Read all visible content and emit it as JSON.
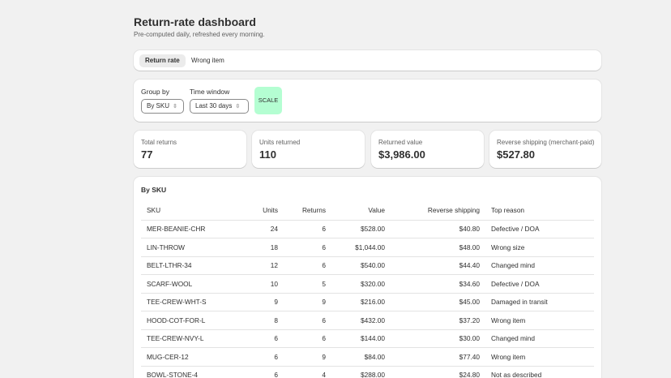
{
  "header": {
    "title": "Return-rate dashboard",
    "subtitle": "Pre-computed daily, refreshed every morning."
  },
  "tabs": [
    {
      "label": "Return rate",
      "active": true
    },
    {
      "label": "Wrong item",
      "active": false
    }
  ],
  "filters": {
    "group_by_label": "Group by",
    "group_by_value": "By SKU",
    "time_window_label": "Time window",
    "time_window_value": "Last 30 days",
    "scale_label": "SCALE"
  },
  "stats": [
    {
      "label": "Total returns",
      "value": "77"
    },
    {
      "label": "Units returned",
      "value": "110"
    },
    {
      "label": "Returned value",
      "value": "$3,986.00"
    },
    {
      "label": "Reverse shipping (merchant-paid)",
      "value": "$527.80"
    }
  ],
  "table": {
    "title": "By SKU",
    "columns": [
      "SKU",
      "Units",
      "Returns",
      "Value",
      "Reverse shipping",
      "Top reason"
    ],
    "rows": [
      [
        "MER-BEANIE-CHR",
        "24",
        "6",
        "$528.00",
        "$40.80",
        "Defective / DOA"
      ],
      [
        "LIN-THROW",
        "18",
        "6",
        "$1,044.00",
        "$48.00",
        "Wrong size"
      ],
      [
        "BELT-LTHR-34",
        "12",
        "6",
        "$540.00",
        "$44.40",
        "Changed mind"
      ],
      [
        "SCARF-WOOL",
        "10",
        "5",
        "$320.00",
        "$34.60",
        "Defective / DOA"
      ],
      [
        "TEE-CREW-WHT-S",
        "9",
        "9",
        "$216.00",
        "$45.00",
        "Damaged in transit"
      ],
      [
        "HOOD-COT-FOR-L",
        "8",
        "6",
        "$432.00",
        "$37.20",
        "Wrong item"
      ],
      [
        "TEE-CREW-NVY-L",
        "6",
        "6",
        "$144.00",
        "$30.00",
        "Changed mind"
      ],
      [
        "MUG-CER-12",
        "6",
        "9",
        "$84.00",
        "$77.40",
        "Wrong item"
      ],
      [
        "BOWL-STONE-4",
        "6",
        "4",
        "$288.00",
        "$24.80",
        "Not as described"
      ]
    ]
  },
  "colors": {
    "background": "#f1f1f1",
    "card": "#ffffff",
    "scale_badge": "#b4fed2"
  }
}
